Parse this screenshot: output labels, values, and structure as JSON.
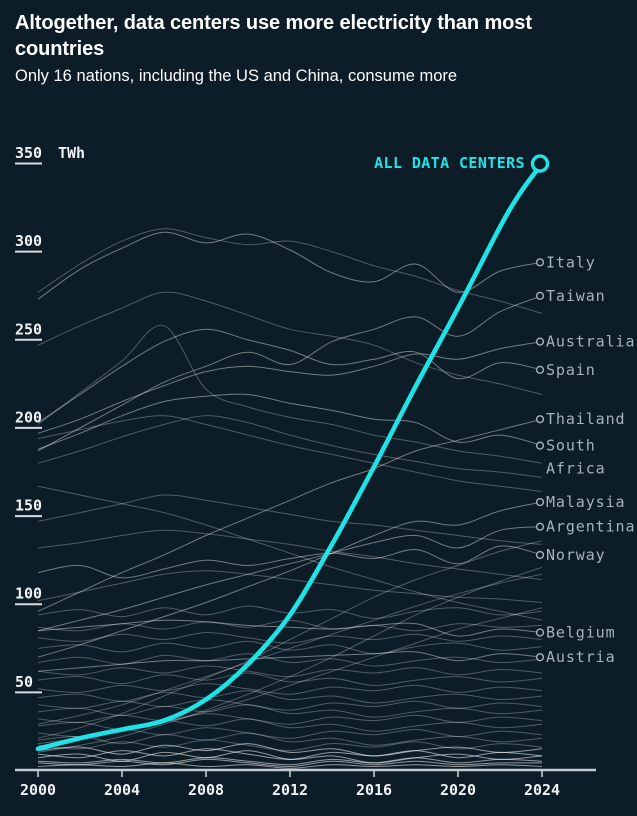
{
  "header": {
    "title": "Altogether, data centers use more electricity than most countries",
    "subtitle": "Only 16 nations, including the US and China, consume more"
  },
  "colors": {
    "background": "#0d1d28",
    "accent": "#1ee3e7",
    "axis_text": "#eef2f4",
    "country_label": "#a7b2bb",
    "faint_line": "#ffffff",
    "axis_line": "#c3cbd1"
  },
  "chart_data": {
    "type": "line",
    "title": "Altogether, data centers use more electricity than most countries",
    "subtitle": "Only 16 nations, including the US and China, consume more",
    "ylabel_unit": "TWh",
    "xlim": [
      2000,
      2024
    ],
    "ylim": [
      0,
      350
    ],
    "grid": false,
    "x_ticks": [
      2000,
      2004,
      2008,
      2012,
      2016,
      2020,
      2024
    ],
    "y_ticks": [
      50,
      100,
      150,
      200,
      250,
      300,
      350
    ],
    "y_unit_tick": 350,
    "main_series": {
      "name": "ALL DATA CENTERS",
      "x": [
        2000,
        2002,
        2004,
        2006,
        2008,
        2010,
        2012,
        2014,
        2016,
        2018,
        2020,
        2022,
        2023,
        2024
      ],
      "values": [
        12,
        18,
        23,
        28,
        40,
        60,
        88,
        128,
        172,
        218,
        262,
        308,
        328,
        344
      ]
    },
    "series_x": [
      2000,
      2002,
      2004,
      2006,
      2008,
      2010,
      2012,
      2014,
      2016,
      2018,
      2020,
      2022,
      2024
    ],
    "labeled_series": [
      {
        "name": "Italy",
        "label_lines": [
          "Italy"
        ],
        "end_value": 288,
        "values": [
          267,
          284,
          296,
          305,
          299,
          304,
          295,
          282,
          277,
          287,
          271,
          283,
          288
        ]
      },
      {
        "name": "Taiwan",
        "label_lines": [
          "Taiwan"
        ],
        "end_value": 269,
        "values": [
          181,
          194,
          207,
          220,
          229,
          237,
          230,
          243,
          250,
          257,
          246,
          260,
          269
        ]
      },
      {
        "name": "Australia",
        "label_lines": [
          "Australia"
        ],
        "end_value": 243,
        "values": [
          191,
          199,
          209,
          218,
          226,
          229,
          226,
          224,
          229,
          236,
          233,
          239,
          243
        ]
      },
      {
        "name": "Spain",
        "label_lines": [
          "Spain"
        ],
        "end_value": 227,
        "values": [
          197,
          213,
          229,
          243,
          250,
          244,
          238,
          230,
          233,
          237,
          222,
          231,
          227
        ]
      },
      {
        "name": "Thailand",
        "label_lines": [
          "Thailand"
        ],
        "end_value": 199,
        "values": [
          90,
          101,
          112,
          122,
          133,
          143,
          153,
          163,
          171,
          181,
          187,
          193,
          199
        ]
      },
      {
        "name": "South Africa",
        "label_lines": [
          "South",
          "Africa"
        ],
        "end_value": 184,
        "values": [
          182,
          191,
          201,
          209,
          212,
          213,
          208,
          204,
          199,
          197,
          186,
          190,
          184
        ]
      },
      {
        "name": "Malaysia",
        "label_lines": [
          "Malaysia"
        ],
        "end_value": 152,
        "values": [
          64,
          71,
          79,
          87,
          95,
          104,
          113,
          123,
          133,
          141,
          139,
          147,
          152
        ]
      },
      {
        "name": "Argentina",
        "label_lines": [
          "Argentina"
        ],
        "end_value": 138,
        "values": [
          79,
          85,
          91,
          98,
          105,
          111,
          117,
          123,
          129,
          133,
          126,
          136,
          138
        ]
      },
      {
        "name": "Norway",
        "label_lines": [
          "Norway"
        ],
        "end_value": 122,
        "values": [
          112,
          116,
          109,
          114,
          119,
          116,
          120,
          123,
          120,
          125,
          117,
          127,
          122
        ]
      },
      {
        "name": "Belgium",
        "label_lines": [
          "Belgium"
        ],
        "end_value": 78,
        "values": [
          79,
          81,
          83,
          85,
          84,
          82,
          81,
          80,
          82,
          83,
          76,
          80,
          78
        ]
      },
      {
        "name": "Austria",
        "label_lines": [
          "Austria"
        ],
        "end_value": 64,
        "values": [
          56,
          58,
          60,
          62,
          62,
          63,
          64,
          65,
          66,
          67,
          62,
          66,
          64
        ]
      }
    ],
    "background_series": [
      [
        271,
        287,
        300,
        307,
        302,
        298,
        300,
        294,
        286,
        280,
        272,
        266,
        259
      ],
      [
        241,
        252,
        262,
        271,
        266,
        258,
        250,
        246,
        241,
        231,
        224,
        219,
        213
      ],
      [
        196,
        214,
        232,
        252,
        216,
        206,
        200,
        196,
        190,
        186,
        181,
        178,
        174
      ],
      [
        174,
        181,
        189,
        196,
        201,
        197,
        190,
        184,
        179,
        175,
        171,
        169,
        166
      ],
      [
        188,
        193,
        198,
        201,
        196,
        190,
        184,
        179,
        174,
        169,
        164,
        161,
        158
      ],
      [
        161,
        156,
        151,
        146,
        139,
        131,
        123,
        115,
        108,
        101,
        95,
        90,
        85
      ],
      [
        141,
        146,
        151,
        156,
        153,
        149,
        145,
        141,
        139,
        136,
        133,
        130,
        128
      ],
      [
        126,
        129,
        133,
        136,
        134,
        131,
        128,
        124,
        121,
        117,
        114,
        111,
        108
      ],
      [
        96,
        101,
        106,
        111,
        113,
        111,
        108,
        105,
        102,
        100,
        98,
        97,
        95
      ],
      [
        18,
        24,
        32,
        42,
        52,
        62,
        74,
        86,
        98,
        108,
        116,
        124,
        130
      ],
      [
        10,
        14,
        19,
        26,
        34,
        43,
        53,
        64,
        76,
        88,
        98,
        107,
        115
      ],
      [
        26,
        31,
        37,
        45,
        53,
        61,
        69,
        77,
        85,
        93,
        100,
        106,
        111
      ],
      [
        15,
        18,
        22,
        27,
        33,
        40,
        48,
        56,
        64,
        72,
        80,
        86,
        92
      ],
      [
        88,
        91,
        87,
        92,
        88,
        93,
        89,
        91,
        86,
        90,
        92,
        88,
        90
      ],
      [
        81,
        79,
        83,
        80,
        84,
        81,
        85,
        80,
        82,
        79,
        83,
        81,
        82
      ],
      [
        75,
        73,
        77,
        74,
        78,
        75,
        72,
        76,
        74,
        77,
        73,
        76,
        74
      ],
      [
        69,
        71,
        67,
        72,
        69,
        73,
        68,
        71,
        66,
        70,
        72,
        68,
        70
      ],
      [
        61,
        64,
        60,
        65,
        62,
        66,
        61,
        63,
        59,
        62,
        64,
        61,
        63
      ],
      [
        56,
        54,
        58,
        55,
        59,
        56,
        53,
        57,
        55,
        58,
        54,
        57,
        55
      ],
      [
        51,
        53,
        49,
        54,
        51,
        55,
        50,
        52,
        48,
        51,
        53,
        50,
        52
      ],
      [
        46,
        44,
        48,
        45,
        49,
        46,
        43,
        47,
        45,
        48,
        44,
        47,
        45
      ],
      [
        41,
        43,
        39,
        44,
        41,
        45,
        40,
        42,
        38,
        41,
        43,
        40,
        42
      ],
      [
        37,
        35,
        39,
        36,
        40,
        37,
        34,
        38,
        36,
        39,
        35,
        38,
        36
      ],
      [
        33,
        35,
        31,
        36,
        33,
        37,
        32,
        34,
        30,
        33,
        35,
        32,
        34
      ],
      [
        29,
        27,
        31,
        28,
        32,
        29,
        26,
        30,
        28,
        31,
        27,
        30,
        28
      ],
      [
        25,
        27,
        23,
        28,
        25,
        29,
        24,
        26,
        22,
        25,
        27,
        24,
        26
      ],
      [
        21,
        19,
        23,
        20,
        24,
        21,
        18,
        22,
        20,
        23,
        19,
        22,
        20
      ],
      [
        17,
        19,
        15,
        20,
        17,
        21,
        16,
        18,
        14,
        17,
        19,
        16,
        18
      ],
      [
        14,
        12,
        16,
        13,
        17,
        14,
        11,
        15,
        13,
        16,
        12,
        15,
        13
      ],
      [
        11,
        13,
        9,
        14,
        11,
        15,
        10,
        12,
        8,
        11,
        13,
        10,
        12
      ],
      [
        9,
        7,
        11,
        8,
        12,
        9,
        6,
        10,
        8,
        11,
        7,
        10,
        8
      ],
      [
        7,
        9,
        5,
        10,
        7,
        11,
        6,
        8,
        4,
        7,
        9,
        6,
        8
      ],
      [
        5,
        4,
        6,
        4,
        7,
        5,
        3,
        6,
        4,
        7,
        4,
        6,
        5
      ],
      [
        4,
        3,
        5,
        3,
        6,
        4,
        2,
        5,
        3,
        5,
        3,
        4,
        4
      ],
      [
        2,
        3,
        2,
        4,
        2,
        3,
        1,
        3,
        2,
        3,
        2,
        3,
        2
      ]
    ]
  }
}
